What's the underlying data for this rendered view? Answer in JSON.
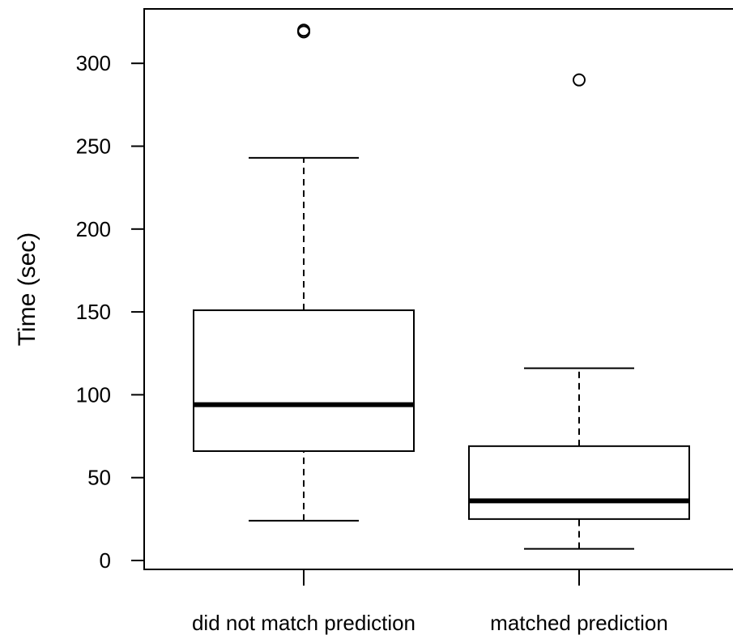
{
  "chart_data": {
    "type": "boxplot",
    "ylabel": "Time (sec)",
    "ylim": [
      0,
      320
    ],
    "yticks": [
      0,
      50,
      100,
      150,
      200,
      250,
      300
    ],
    "categories": [
      "did not match prediction",
      "matched prediction"
    ],
    "boxes": [
      {
        "category": "did not match prediction",
        "whisker_low": 24,
        "q1": 66,
        "median": 94,
        "q3": 151,
        "whisker_high": 243,
        "outliers": [
          319,
          320
        ]
      },
      {
        "category": "matched prediction",
        "whisker_low": 7,
        "q1": 25,
        "median": 36,
        "q3": 69,
        "whisker_high": 116,
        "outliers": [
          290
        ]
      }
    ]
  }
}
